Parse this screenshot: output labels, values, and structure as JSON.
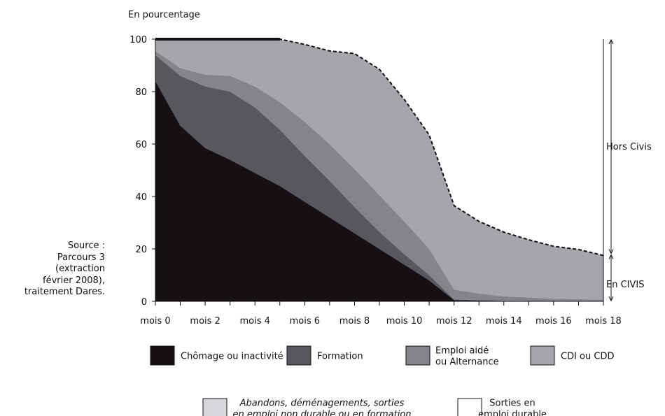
{
  "chart_data": {
    "type": "area",
    "ylabel": "En pourcentage",
    "ylim": [
      0,
      100
    ],
    "y_ticks": [
      "0",
      "20",
      "40",
      "60",
      "80",
      "100"
    ],
    "x": [
      0,
      1,
      2,
      3,
      4,
      5,
      6,
      7,
      8,
      9,
      10,
      11,
      12,
      13,
      14,
      15,
      16,
      17,
      18
    ],
    "x_tick_labels": [
      "mois 0",
      "mois 2",
      "mois 4",
      "mois 6",
      "mois 8",
      "mois 10",
      "mois 12",
      "mois 14",
      "mois 16",
      "mois 18"
    ],
    "series": [
      {
        "name": "Chômage ou inactivité",
        "color": "#141014",
        "values": [
          84,
          67,
          58.5,
          54,
          49,
          44,
          38,
          32,
          26,
          20,
          14,
          8,
          0.5,
          0.3,
          0.2,
          0.2,
          0.1,
          0.1,
          0.1
        ]
      },
      {
        "name": "Formation",
        "color": "#57575d",
        "values": [
          10,
          19,
          23.5,
          26,
          25,
          21.5,
          17.5,
          14,
          10,
          6.5,
          4,
          2,
          0.2,
          0.2,
          0.1,
          0.1,
          0.1,
          0.1,
          0.1
        ]
      },
      {
        "name": "Emploi aidé\nou Alternance",
        "color": "#848489",
        "values": [
          1.5,
          3,
          4.5,
          6,
          8,
          10.5,
          13,
          14,
          14.5,
          14,
          12.5,
          10,
          3.8,
          2.5,
          1.6,
          1.2,
          0.8,
          0.6,
          0.5
        ]
      },
      {
        "name": "CDI ou CDD",
        "color": "#a5a6ac",
        "values": [
          4.5,
          11,
          13.5,
          14,
          18,
          24,
          29.5,
          35.5,
          44,
          48,
          46.5,
          43.5,
          32,
          27.5,
          24.5,
          22,
          20,
          19,
          16.8
        ]
      },
      {
        "name": "Abandons, déménagements, sorties\nen emploi non durable ou en formation",
        "color": "#d6d7da",
        "values": [
          0,
          0,
          0,
          0,
          0,
          0,
          0,
          0,
          0,
          0,
          0,
          0,
          0,
          0,
          0,
          0,
          0,
          0,
          0
        ]
      },
      {
        "name": "Sorties en\nemploi durable",
        "color": "#ffffff",
        "values": [
          0,
          0,
          0,
          0,
          0,
          0,
          2,
          4.5,
          5.5,
          11.5,
          23,
          36.5,
          63.5,
          69.8,
          73.6,
          76.5,
          79,
          80.2,
          82.5
        ]
      }
    ],
    "annotations": [
      {
        "text": "Hors Civis",
        "y_range": [
          18,
          100
        ]
      },
      {
        "text": "En CIVIS",
        "y_range": [
          0,
          18
        ]
      }
    ],
    "legend_placement": "bottom"
  },
  "source_lines": [
    "Source :",
    "Parcours 3",
    "(extraction",
    "février 2008),",
    "traitement Dares."
  ]
}
